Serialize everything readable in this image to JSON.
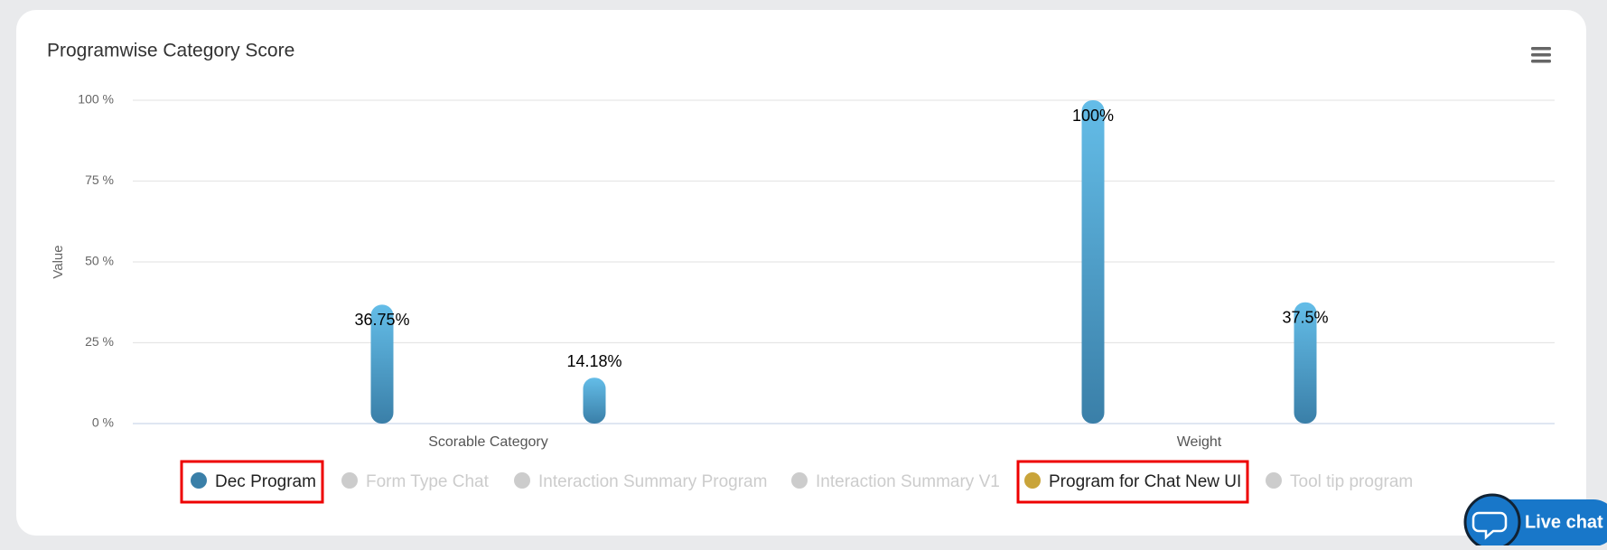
{
  "chart_data": {
    "type": "bar",
    "title": "Programwise Category Score",
    "y_axis_title": "Value",
    "categories": [
      "Scorable Category",
      "Weight"
    ],
    "ylim": [
      0,
      100
    ],
    "yticks": [
      {
        "value": 0,
        "label": "0 %"
      },
      {
        "value": 25,
        "label": "25 %"
      },
      {
        "value": 50,
        "label": "50 %"
      },
      {
        "value": 75,
        "label": "75 %"
      },
      {
        "value": 100,
        "label": "100 %"
      }
    ],
    "grid": true,
    "bar_gradient": [
      "#64bde8",
      "#3a7fa8"
    ],
    "series": [
      {
        "name": "Dec Program",
        "color": "#3a7fa8",
        "visible": true,
        "values": [
          36.75,
          100
        ],
        "value_labels": [
          "36.75%",
          "100%"
        ]
      },
      {
        "name": "Form Type Chat",
        "color": "#cccccc",
        "visible": false
      },
      {
        "name": "Interaction Summary Program",
        "color": "#cccccc",
        "visible": false
      },
      {
        "name": "Interaction Summary V1",
        "color": "#cccccc",
        "visible": false
      },
      {
        "name": "Program for Chat New UI",
        "color": "#c9a43a",
        "visible": true,
        "values": [
          14.18,
          37.5
        ],
        "value_labels": [
          "14.18%",
          "37.5%"
        ]
      },
      {
        "name": "Tool tip program",
        "color": "#cccccc",
        "visible": false
      }
    ]
  },
  "live_chat": "Live chat"
}
